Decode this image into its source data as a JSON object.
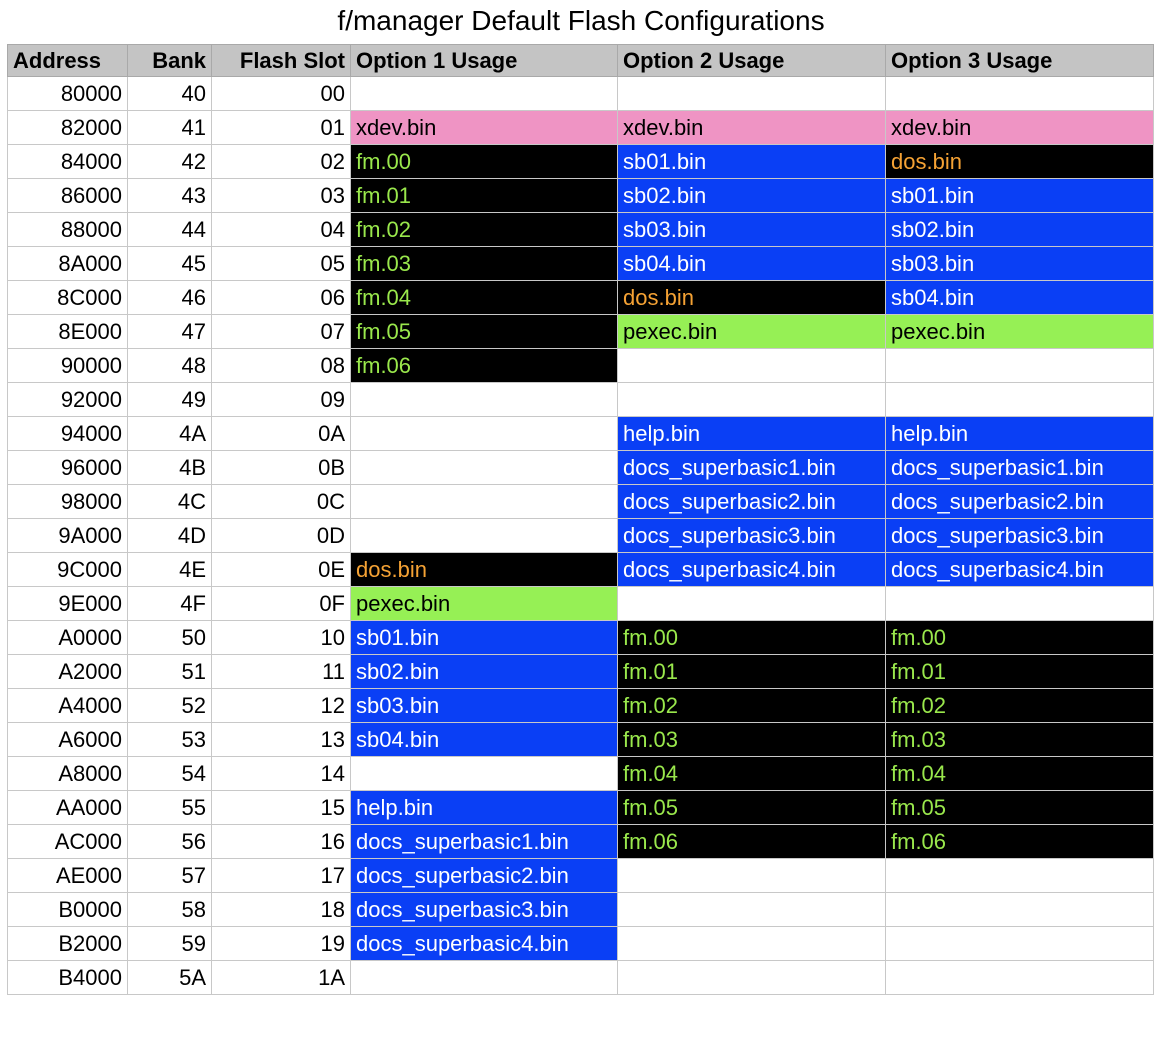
{
  "title": "f/manager Default Flash Configurations",
  "columns": [
    "Address",
    "Bank",
    "Flash Slot",
    "Option 1 Usage",
    "Option 2 Usage",
    "Option 3 Usage"
  ],
  "colors": {
    "xdev": "#ef94c4",
    "fm": "#000000",
    "fm_text": "#9ae84c",
    "basic": "#0a3ff5",
    "dos_text": "#f5a234",
    "pexec": "#96f055"
  },
  "rows": [
    {
      "address": "80000",
      "bank": "40",
      "slot": "00",
      "opt1": "",
      "opt2": "",
      "opt3": ""
    },
    {
      "address": "82000",
      "bank": "41",
      "slot": "01",
      "opt1": "xdev.bin",
      "opt2": "xdev.bin",
      "opt3": "xdev.bin"
    },
    {
      "address": "84000",
      "bank": "42",
      "slot": "02",
      "opt1": "fm.00",
      "opt2": "sb01.bin",
      "opt3": "dos.bin"
    },
    {
      "address": "86000",
      "bank": "43",
      "slot": "03",
      "opt1": "fm.01",
      "opt2": "sb02.bin",
      "opt3": "sb01.bin"
    },
    {
      "address": "88000",
      "bank": "44",
      "slot": "04",
      "opt1": "fm.02",
      "opt2": "sb03.bin",
      "opt3": "sb02.bin"
    },
    {
      "address": "8A000",
      "bank": "45",
      "slot": "05",
      "opt1": "fm.03",
      "opt2": "sb04.bin",
      "opt3": "sb03.bin"
    },
    {
      "address": "8C000",
      "bank": "46",
      "slot": "06",
      "opt1": "fm.04",
      "opt2": "dos.bin",
      "opt3": "sb04.bin"
    },
    {
      "address": "8E000",
      "bank": "47",
      "slot": "07",
      "opt1": "fm.05",
      "opt2": "pexec.bin",
      "opt3": "pexec.bin"
    },
    {
      "address": "90000",
      "bank": "48",
      "slot": "08",
      "opt1": "fm.06",
      "opt2": "",
      "opt3": ""
    },
    {
      "address": "92000",
      "bank": "49",
      "slot": "09",
      "opt1": "",
      "opt2": "",
      "opt3": ""
    },
    {
      "address": "94000",
      "bank": "4A",
      "slot": "0A",
      "opt1": "",
      "opt2": "help.bin",
      "opt3": "help.bin"
    },
    {
      "address": "96000",
      "bank": "4B",
      "slot": "0B",
      "opt1": "",
      "opt2": "docs_superbasic1.bin",
      "opt3": "docs_superbasic1.bin"
    },
    {
      "address": "98000",
      "bank": "4C",
      "slot": "0C",
      "opt1": "",
      "opt2": "docs_superbasic2.bin",
      "opt3": "docs_superbasic2.bin"
    },
    {
      "address": "9A000",
      "bank": "4D",
      "slot": "0D",
      "opt1": "",
      "opt2": "docs_superbasic3.bin",
      "opt3": "docs_superbasic3.bin"
    },
    {
      "address": "9C000",
      "bank": "4E",
      "slot": "0E",
      "opt1": "dos.bin",
      "opt2": "docs_superbasic4.bin",
      "opt3": "docs_superbasic4.bin"
    },
    {
      "address": "9E000",
      "bank": "4F",
      "slot": "0F",
      "opt1": "pexec.bin",
      "opt2": "",
      "opt3": ""
    },
    {
      "address": "A0000",
      "bank": "50",
      "slot": "10",
      "opt1": "sb01.bin",
      "opt2": "fm.00",
      "opt3": "fm.00"
    },
    {
      "address": "A2000",
      "bank": "51",
      "slot": "11",
      "opt1": "sb02.bin",
      "opt2": "fm.01",
      "opt3": "fm.01"
    },
    {
      "address": "A4000",
      "bank": "52",
      "slot": "12",
      "opt1": "sb03.bin",
      "opt2": "fm.02",
      "opt3": "fm.02"
    },
    {
      "address": "A6000",
      "bank": "53",
      "slot": "13",
      "opt1": "sb04.bin",
      "opt2": "fm.03",
      "opt3": "fm.03"
    },
    {
      "address": "A8000",
      "bank": "54",
      "slot": "14",
      "opt1": "",
      "opt2": "fm.04",
      "opt3": "fm.04"
    },
    {
      "address": "AA000",
      "bank": "55",
      "slot": "15",
      "opt1": "help.bin",
      "opt2": "fm.05",
      "opt3": "fm.05"
    },
    {
      "address": "AC000",
      "bank": "56",
      "slot": "16",
      "opt1": "docs_superbasic1.bin",
      "opt2": "fm.06",
      "opt3": "fm.06"
    },
    {
      "address": "AE000",
      "bank": "57",
      "slot": "17",
      "opt1": "docs_superbasic2.bin",
      "opt2": "",
      "opt3": ""
    },
    {
      "address": "B0000",
      "bank": "58",
      "slot": "18",
      "opt1": "docs_superbasic3.bin",
      "opt2": "",
      "opt3": ""
    },
    {
      "address": "B2000",
      "bank": "59",
      "slot": "19",
      "opt1": "docs_superbasic4.bin",
      "opt2": "",
      "opt3": ""
    },
    {
      "address": "B4000",
      "bank": "5A",
      "slot": "1A",
      "opt1": "",
      "opt2": "",
      "opt3": ""
    }
  ]
}
